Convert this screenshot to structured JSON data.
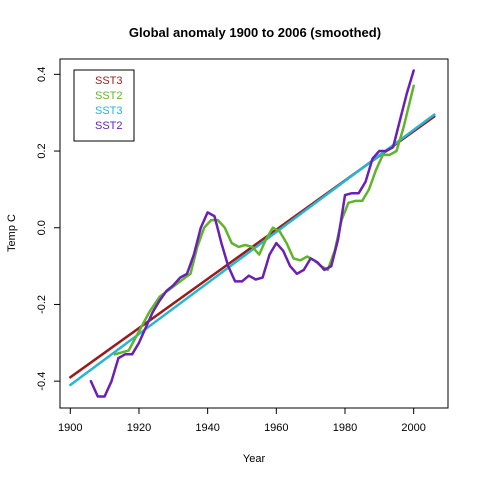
{
  "chart_data": {
    "type": "line",
    "title": "Global anomaly  1900  to  2006 (smoothed)",
    "xlabel": "Year",
    "ylabel": "Temp C",
    "xlim": [
      1897,
      2010
    ],
    "ylim": [
      -0.47,
      0.44
    ],
    "xticks": [
      1900,
      1920,
      1940,
      1960,
      1980,
      2000
    ],
    "yticks": [
      -0.4,
      -0.2,
      0.0,
      0.2,
      0.4
    ],
    "xtick_labels": [
      "1900",
      "1920",
      "1940",
      "1960",
      "1980",
      "2000"
    ],
    "ytick_labels": [
      "-0.4",
      "-0.2",
      "0.0",
      "0.2",
      "0.4"
    ],
    "grid": false,
    "legend_position": "top-left",
    "legend": [
      {
        "label": "SST3",
        "color": "#9b1b1b"
      },
      {
        "label": "SST2",
        "color": "#5fb52a"
      },
      {
        "label": "SST3",
        "color": "#27b5d6"
      },
      {
        "label": "SST2",
        "color": "#6a1fb5"
      }
    ],
    "series": [
      {
        "color": "#9b1b1b",
        "x": [
          1900,
          2006
        ],
        "y": [
          -0.39,
          0.29
        ]
      },
      {
        "color": "#27b5d6",
        "x": [
          1900,
          2006
        ],
        "y": [
          -0.41,
          0.295
        ]
      },
      {
        "color": "#5fb52a",
        "x": [
          1913,
          1917,
          1920,
          1923,
          1926,
          1929,
          1932,
          1935,
          1937,
          1939,
          1941,
          1943,
          1945,
          1947,
          1949,
          1951,
          1953,
          1955,
          1957,
          1959,
          1961,
          1963,
          1965,
          1967,
          1969,
          1971,
          1973,
          1975,
          1977,
          1979,
          1981,
          1983,
          1985,
          1987,
          1989,
          1991,
          1993,
          1995,
          1997,
          2000
        ],
        "y": [
          -0.33,
          -0.32,
          -0.27,
          -0.22,
          -0.18,
          -0.16,
          -0.14,
          -0.12,
          -0.05,
          0.0,
          0.02,
          0.02,
          0.0,
          -0.04,
          -0.05,
          -0.045,
          -0.05,
          -0.07,
          -0.03,
          0.0,
          -0.01,
          -0.04,
          -0.08,
          -0.085,
          -0.075,
          -0.085,
          -0.1,
          -0.11,
          -0.06,
          0.02,
          0.065,
          0.07,
          0.07,
          0.1,
          0.15,
          0.19,
          0.19,
          0.2,
          0.26,
          0.37
        ]
      },
      {
        "color": "#6a1fb5",
        "x": [
          1906,
          1908,
          1910,
          1912,
          1914,
          1916,
          1918,
          1920,
          1922,
          1924,
          1926,
          1928,
          1930,
          1932,
          1934,
          1936,
          1938,
          1940,
          1942,
          1944,
          1946,
          1948,
          1950,
          1952,
          1954,
          1956,
          1958,
          1960,
          1962,
          1964,
          1966,
          1968,
          1970,
          1972,
          1974,
          1976,
          1978,
          1980,
          1982,
          1984,
          1986,
          1988,
          1990,
          1992,
          1994,
          1996,
          1998,
          2000
        ],
        "y": [
          -0.4,
          -0.44,
          -0.44,
          -0.4,
          -0.34,
          -0.33,
          -0.33,
          -0.3,
          -0.26,
          -0.22,
          -0.19,
          -0.165,
          -0.15,
          -0.13,
          -0.12,
          -0.07,
          0.0,
          0.04,
          0.03,
          -0.04,
          -0.1,
          -0.14,
          -0.14,
          -0.125,
          -0.135,
          -0.13,
          -0.07,
          -0.04,
          -0.06,
          -0.1,
          -0.12,
          -0.11,
          -0.08,
          -0.09,
          -0.11,
          -0.1,
          -0.03,
          0.085,
          0.09,
          0.09,
          0.12,
          0.18,
          0.2,
          0.2,
          0.21,
          0.28,
          0.35,
          0.41
        ]
      }
    ]
  }
}
